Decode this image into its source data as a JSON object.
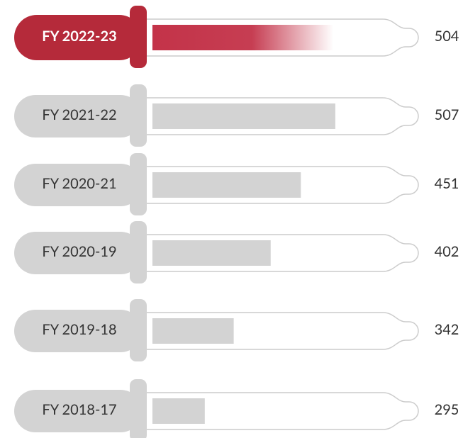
{
  "chart_data": {
    "type": "bar",
    "orientation": "horizontal",
    "categories": [
      "FY 2022-23",
      "FY 2021-22",
      "FY 2020-21",
      "FY 2020-19",
      "FY 2019-18",
      "FY 2018-17"
    ],
    "values": [
      504,
      507,
      451,
      402,
      342,
      295
    ],
    "colors": [
      "#b52a3a",
      "#d3d3d3",
      "#d3d3d3",
      "#d3d3d3",
      "#d3d3d3",
      "#d3d3d3"
    ],
    "xlim": [
      210,
      590
    ]
  }
}
